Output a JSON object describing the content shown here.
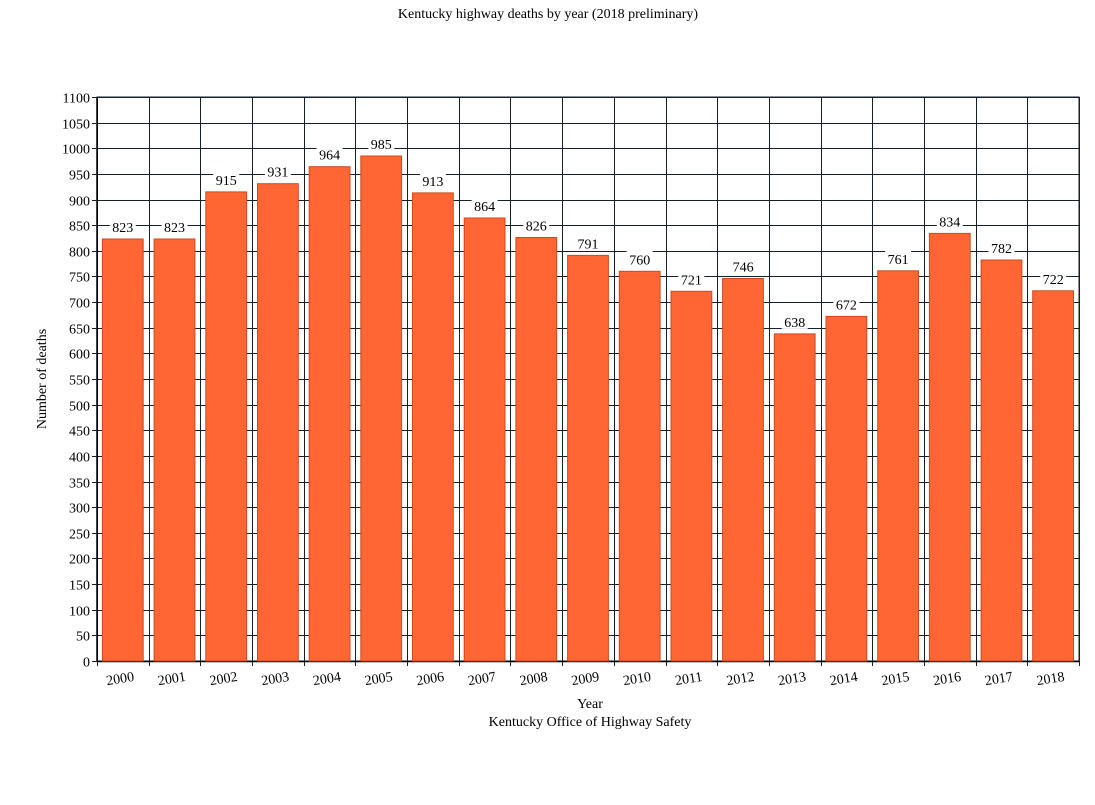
{
  "chart_data": {
    "type": "bar",
    "title": "Kentucky highway deaths by year (2018 preliminary)",
    "xlabel": "Year",
    "ylabel": "Number of deaths",
    "source": "Kentucky Office of Highway Safety",
    "categories": [
      "2000",
      "2001",
      "2002",
      "2003",
      "2004",
      "2005",
      "2006",
      "2007",
      "2008",
      "2009",
      "2010",
      "2011",
      "2012",
      "2013",
      "2014",
      "2015",
      "2016",
      "2017",
      "2018"
    ],
    "values": [
      823,
      823,
      915,
      931,
      964,
      985,
      913,
      864,
      826,
      791,
      760,
      721,
      746,
      638,
      672,
      761,
      834,
      782,
      722
    ],
    "value_labels": [
      "823",
      "823",
      "915",
      "931",
      "964",
      "985",
      "913",
      "864",
      "826",
      "791",
      "760",
      "721",
      "746",
      "638",
      "672",
      "761",
      "834",
      "782",
      "722"
    ],
    "ylim": [
      0,
      1100
    ],
    "yticks": [
      0,
      50,
      100,
      150,
      200,
      250,
      300,
      350,
      400,
      450,
      500,
      550,
      600,
      650,
      700,
      750,
      800,
      850,
      900,
      950,
      1000,
      1050,
      1100
    ],
    "ytick_labels": [
      "0",
      "50",
      "100",
      "150",
      "200",
      "250",
      "300",
      "350",
      "400",
      "450",
      "500",
      "550",
      "600",
      "650",
      "700",
      "750",
      "800",
      "850",
      "900",
      "950",
      "1000",
      "1050",
      "1100"
    ],
    "grid": true,
    "legend": "none",
    "colors": {
      "bar": "#ff6633",
      "bar_edge": "#cc4a1f",
      "grid": "#14202c",
      "background": "#ffffff"
    }
  }
}
